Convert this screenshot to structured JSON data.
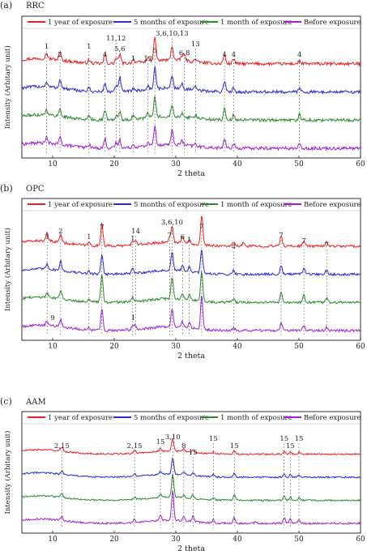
{
  "chart_data": [
    {
      "type": "line",
      "panel_label": "(a)",
      "title": "RRC",
      "xlabel": "2 theta",
      "ylabel": "Intensity (Arbitary unit)",
      "xlim": [
        5,
        60
      ],
      "xticks": [
        10,
        20,
        30,
        40,
        50,
        60
      ],
      "grid": false,
      "legend_position": "top",
      "series": [
        {
          "name": "1 year of exposure",
          "color": "#e8201f",
          "offset": 3,
          "noise": 0.1,
          "peaks": [
            [
              9.0,
              0.35
            ],
            [
              11.2,
              0.5
            ],
            [
              15.9,
              0.2
            ],
            [
              18.5,
              0.6
            ],
            [
              20.3,
              0.35
            ],
            [
              20.9,
              0.6
            ],
            [
              23.1,
              0.25
            ],
            [
              25.5,
              0.3
            ],
            [
              26.6,
              1.5
            ],
            [
              29.4,
              0.9
            ],
            [
              31.0,
              0.3
            ],
            [
              31.4,
              0.35
            ],
            [
              33.2,
              0.2
            ],
            [
              37.9,
              0.6
            ],
            [
              39.4,
              0.35
            ],
            [
              50.1,
              0.2
            ]
          ]
        },
        {
          "name": "5 months of exposure",
          "color": "#2a2ad8",
          "offset": 2,
          "noise": 0.1,
          "peaks": [
            [
              9.0,
              0.3
            ],
            [
              11.2,
              0.55
            ],
            [
              15.9,
              0.2
            ],
            [
              18.5,
              0.55
            ],
            [
              20.3,
              0.35
            ],
            [
              20.9,
              1.0
            ],
            [
              23.1,
              0.2
            ],
            [
              25.5,
              0.25
            ],
            [
              26.6,
              1.4
            ],
            [
              29.4,
              0.85
            ],
            [
              31.0,
              0.3
            ],
            [
              33.2,
              0.2
            ],
            [
              37.9,
              0.7
            ],
            [
              39.4,
              0.3
            ],
            [
              50.1,
              0.3
            ]
          ]
        },
        {
          "name": "1 month of exposure",
          "color": "#2a8a2a",
          "offset": 1,
          "noise": 0.1,
          "peaks": [
            [
              9.0,
              0.35
            ],
            [
              11.2,
              0.5
            ],
            [
              15.9,
              0.2
            ],
            [
              18.5,
              0.65
            ],
            [
              20.3,
              0.3
            ],
            [
              20.9,
              0.5
            ],
            [
              23.1,
              0.25
            ],
            [
              25.5,
              0.3
            ],
            [
              26.6,
              1.3
            ],
            [
              29.4,
              0.8
            ],
            [
              31.0,
              0.25
            ],
            [
              33.2,
              0.2
            ],
            [
              37.9,
              0.75
            ],
            [
              39.4,
              0.35
            ],
            [
              50.1,
              0.35
            ]
          ]
        },
        {
          "name": "Before exposure",
          "color": "#a020d8",
          "offset": 0,
          "noise": 0.1,
          "peaks": [
            [
              9.0,
              0.35
            ],
            [
              11.2,
              0.45
            ],
            [
              15.9,
              0.2
            ],
            [
              18.5,
              0.6
            ],
            [
              20.3,
              0.35
            ],
            [
              20.9,
              0.55
            ],
            [
              23.1,
              0.2
            ],
            [
              25.5,
              0.25
            ],
            [
              26.6,
              1.2
            ],
            [
              29.4,
              0.9
            ],
            [
              31.0,
              0.3
            ],
            [
              33.2,
              0.2
            ],
            [
              37.9,
              0.6
            ],
            [
              39.4,
              0.3
            ],
            [
              50.1,
              0.25
            ]
          ]
        }
      ],
      "annotations": [
        {
          "x": 9.0,
          "label": "1",
          "level": 0
        },
        {
          "x": 11.2,
          "label": "2",
          "level": 1
        },
        {
          "x": 15.9,
          "label": "1",
          "level": 0
        },
        {
          "x": 18.5,
          "label": "4",
          "level": 1
        },
        {
          "x": 20.3,
          "label": "11,12",
          "level": -1
        },
        {
          "x": 20.9,
          "label": "5,6",
          "level": 0.3
        },
        {
          "x": 23.1,
          "label": "1",
          "level": 1.5
        },
        {
          "x": 25.5,
          "label": "12",
          "level": 1.5
        },
        {
          "x": 26.6,
          "label": "5",
          "level": 0.5
        },
        {
          "x": 29.4,
          "label": "3,6,10,13",
          "level": -1.6
        },
        {
          "x": 31.4,
          "label": "6,8",
          "level": 0.8
        },
        {
          "x": 33.2,
          "label": "13",
          "level": -0.3
        },
        {
          "x": 37.9,
          "label": "4",
          "level": 1
        },
        {
          "x": 39.4,
          "label": "4",
          "level": 1
        },
        {
          "x": 50.1,
          "label": "4",
          "level": 1
        }
      ]
    },
    {
      "type": "line",
      "panel_label": "(b)",
      "title": "OPC",
      "xlabel": "2 theta",
      "ylabel": "Intensity (Arbitary unit)",
      "xlim": [
        5,
        60
      ],
      "xticks": [
        10,
        20,
        30,
        40,
        50,
        60
      ],
      "grid": false,
      "legend_position": "top",
      "series": [
        {
          "name": "1 year of exposure",
          "color": "#e8201f",
          "offset": 3,
          "noise": 0.08,
          "peaks": [
            [
              9.1,
              0.5
            ],
            [
              11.3,
              0.55
            ],
            [
              15.9,
              0.2
            ],
            [
              18.0,
              1.5
            ],
            [
              23.0,
              0.3
            ],
            [
              23.5,
              0.25
            ],
            [
              29.0,
              0.3
            ],
            [
              29.4,
              1.0
            ],
            [
              31.1,
              0.4
            ],
            [
              32.2,
              0.3
            ],
            [
              34.2,
              1.9
            ],
            [
              39.4,
              0.25
            ],
            [
              41.0,
              0.2
            ],
            [
              47.1,
              0.7
            ],
            [
              50.8,
              0.4
            ],
            [
              54.5,
              0.3
            ]
          ]
        },
        {
          "name": "5 months of exposure",
          "color": "#2a2ad8",
          "offset": 2,
          "noise": 0.08,
          "peaks": [
            [
              9.1,
              0.35
            ],
            [
              11.3,
              0.6
            ],
            [
              15.9,
              0.15
            ],
            [
              18.0,
              1.3
            ],
            [
              23.0,
              0.3
            ],
            [
              29.4,
              1.2
            ],
            [
              31.1,
              0.4
            ],
            [
              32.2,
              0.3
            ],
            [
              34.2,
              1.5
            ],
            [
              39.4,
              0.25
            ],
            [
              47.1,
              0.6
            ],
            [
              50.8,
              0.4
            ],
            [
              54.5,
              0.25
            ]
          ]
        },
        {
          "name": "1 month of exposure",
          "color": "#2a8a2a",
          "offset": 1,
          "noise": 0.08,
          "peaks": [
            [
              9.1,
              0.3
            ],
            [
              11.3,
              0.55
            ],
            [
              15.9,
              0.15
            ],
            [
              18.0,
              1.8
            ],
            [
              23.0,
              0.25
            ],
            [
              29.4,
              1.4
            ],
            [
              31.1,
              0.4
            ],
            [
              32.2,
              0.35
            ],
            [
              34.2,
              1.9
            ],
            [
              39.4,
              0.25
            ],
            [
              47.1,
              0.7
            ],
            [
              50.8,
              0.45
            ],
            [
              54.5,
              0.25
            ]
          ]
        },
        {
          "name": "Before exposure",
          "color": "#a020d8",
          "offset": 0,
          "noise": 0.08,
          "peaks": [
            [
              9.1,
              0.3
            ],
            [
              11.3,
              0.45
            ],
            [
              15.9,
              0.15
            ],
            [
              18.0,
              1.4
            ],
            [
              23.0,
              0.3
            ],
            [
              23.4,
              0.25
            ],
            [
              29.4,
              1.2
            ],
            [
              31.1,
              0.35
            ],
            [
              32.2,
              0.4
            ],
            [
              34.2,
              2.2
            ],
            [
              39.4,
              0.2
            ],
            [
              47.1,
              0.55
            ],
            [
              50.8,
              0.35
            ],
            [
              54.5,
              0.2
            ]
          ]
        }
      ],
      "annotations": [
        {
          "x": 9.1,
          "label": "1",
          "level": 1
        },
        {
          "x": 11.3,
          "label": "2",
          "level": 0.3
        },
        {
          "x": 15.9,
          "label": "1",
          "level": 1
        },
        {
          "x": 18.0,
          "label": "7",
          "level": -0.2
        },
        {
          "x": 23.0,
          "label": "1",
          "level": 1.2
        },
        {
          "x": 23.5,
          "label": "14",
          "level": 0.3
        },
        {
          "x": 29.0,
          "label": "7",
          "level": 0.8
        },
        {
          "x": 29.4,
          "label": "3,6,10",
          "level": -0.8
        },
        {
          "x": 31.1,
          "label": "6",
          "level": 1
        },
        {
          "x": 32.2,
          "label": "1",
          "level": 1.4
        },
        {
          "x": 34.2,
          "label": "7",
          "level": -0.3
        },
        {
          "x": 39.4,
          "label": "4",
          "level": 2.2
        },
        {
          "x": 47.1,
          "label": "7",
          "level": 0.8
        },
        {
          "x": 50.8,
          "label": "7",
          "level": 1.5
        },
        {
          "x": 54.5,
          "label": "7",
          "level": 2
        }
      ],
      "inline_labels": [
        {
          "x": 10.0,
          "label": "9"
        },
        {
          "x": 23.1,
          "label": "1"
        }
      ]
    },
    {
      "type": "line",
      "panel_label": "(c)",
      "title": "AAM",
      "xlabel": "2 theta",
      "ylabel": "Intensity (Arbitary unit)",
      "xlim": [
        5,
        60
      ],
      "xticks": [
        10,
        20,
        30,
        40,
        50,
        60
      ],
      "grid": false,
      "legend_position": "top",
      "series": [
        {
          "name": "1 year of exposure",
          "color": "#e8201f",
          "offset": 3,
          "noise": 0.06,
          "peaks": [
            [
              11.5,
              0.3
            ],
            [
              23.3,
              0.25
            ],
            [
              27.5,
              0.2
            ],
            [
              29.5,
              1.0
            ],
            [
              31.3,
              0.2
            ],
            [
              32.8,
              0.2
            ],
            [
              36.1,
              0.15
            ],
            [
              39.5,
              0.25
            ],
            [
              47.6,
              0.2
            ],
            [
              48.6,
              0.2
            ],
            [
              50.0,
              0.15
            ]
          ]
        },
        {
          "name": "5 months of exposure",
          "color": "#2a2ad8",
          "offset": 2,
          "noise": 0.06,
          "peaks": [
            [
              11.5,
              0.25
            ],
            [
              23.3,
              0.2
            ],
            [
              27.5,
              0.2
            ],
            [
              29.5,
              1.3
            ],
            [
              31.3,
              0.25
            ],
            [
              32.8,
              0.2
            ],
            [
              36.1,
              0.2
            ],
            [
              39.5,
              0.3
            ],
            [
              47.6,
              0.25
            ],
            [
              48.6,
              0.2
            ],
            [
              50.0,
              0.15
            ]
          ]
        },
        {
          "name": "1 month of exposure",
          "color": "#2a8a2a",
          "offset": 1,
          "noise": 0.06,
          "peaks": [
            [
              11.5,
              0.3
            ],
            [
              23.3,
              0.2
            ],
            [
              27.5,
              0.25
            ],
            [
              29.5,
              1.8
            ],
            [
              31.3,
              0.25
            ],
            [
              32.8,
              0.3
            ],
            [
              36.1,
              0.2
            ],
            [
              39.5,
              0.4
            ],
            [
              47.6,
              0.3
            ],
            [
              48.6,
              0.25
            ],
            [
              50.0,
              0.2
            ]
          ]
        },
        {
          "name": "Before exposure",
          "color": "#a020d8",
          "offset": 0,
          "noise": 0.07,
          "peaks": [
            [
              11.5,
              0.3
            ],
            [
              23.3,
              0.25
            ],
            [
              27.5,
              0.45
            ],
            [
              29.5,
              2.3
            ],
            [
              31.3,
              0.3
            ],
            [
              32.8,
              0.4
            ],
            [
              36.1,
              0.3
            ],
            [
              39.5,
              0.45
            ],
            [
              43.0,
              0.15
            ],
            [
              47.6,
              0.45
            ],
            [
              48.6,
              0.35
            ],
            [
              50.0,
              0.25
            ]
          ]
        }
      ],
      "annotations": [
        {
          "x": 11.5,
          "label": "2,15",
          "level": 0.5
        },
        {
          "x": 23.3,
          "label": "2,15",
          "level": 0.5
        },
        {
          "x": 27.5,
          "label": "15",
          "level": 0
        },
        {
          "x": 29.5,
          "label": "3,10",
          "level": -0.6
        },
        {
          "x": 31.3,
          "label": "8",
          "level": 0.5
        },
        {
          "x": 32.8,
          "label": "15",
          "level": 1.3
        },
        {
          "x": 36.1,
          "label": "15",
          "level": -0.4
        },
        {
          "x": 39.5,
          "label": "15",
          "level": 0.5
        },
        {
          "x": 47.6,
          "label": "15",
          "level": -0.4
        },
        {
          "x": 48.6,
          "label": "15",
          "level": 0.5
        },
        {
          "x": 50.0,
          "label": "15",
          "level": -0.4
        }
      ]
    }
  ]
}
